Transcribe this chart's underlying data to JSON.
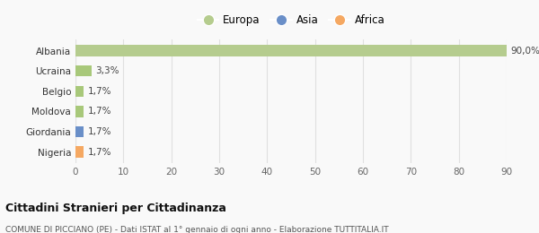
{
  "categories": [
    "Albania",
    "Ucraina",
    "Belgio",
    "Moldova",
    "Giordania",
    "Nigeria"
  ],
  "values": [
    90.0,
    3.3,
    1.7,
    1.7,
    1.7,
    1.7
  ],
  "colors": [
    "#b5cc8e",
    "#a8c87a",
    "#a8c87a",
    "#a8c87a",
    "#6a8fc8",
    "#f5a862"
  ],
  "labels": [
    "90,0%",
    "3,3%",
    "1,7%",
    "1,7%",
    "1,7%",
    "1,7%"
  ],
  "legend": [
    {
      "label": "Europa",
      "color": "#b5cc8e"
    },
    {
      "label": "Asia",
      "color": "#6a8fc8"
    },
    {
      "label": "Africa",
      "color": "#f5a862"
    }
  ],
  "xlim": [
    0,
    90
  ],
  "xticks": [
    0,
    10,
    20,
    30,
    40,
    50,
    60,
    70,
    80,
    90
  ],
  "title": "Cittadini Stranieri per Cittadinanza",
  "subtitle": "COMUNE DI PICCIANO (PE) - Dati ISTAT al 1° gennaio di ogni anno - Elaborazione TUTTITALIA.IT",
  "bg_color": "#f9f9f9",
  "grid_color": "#e0e0e0",
  "bar_height": 0.55
}
